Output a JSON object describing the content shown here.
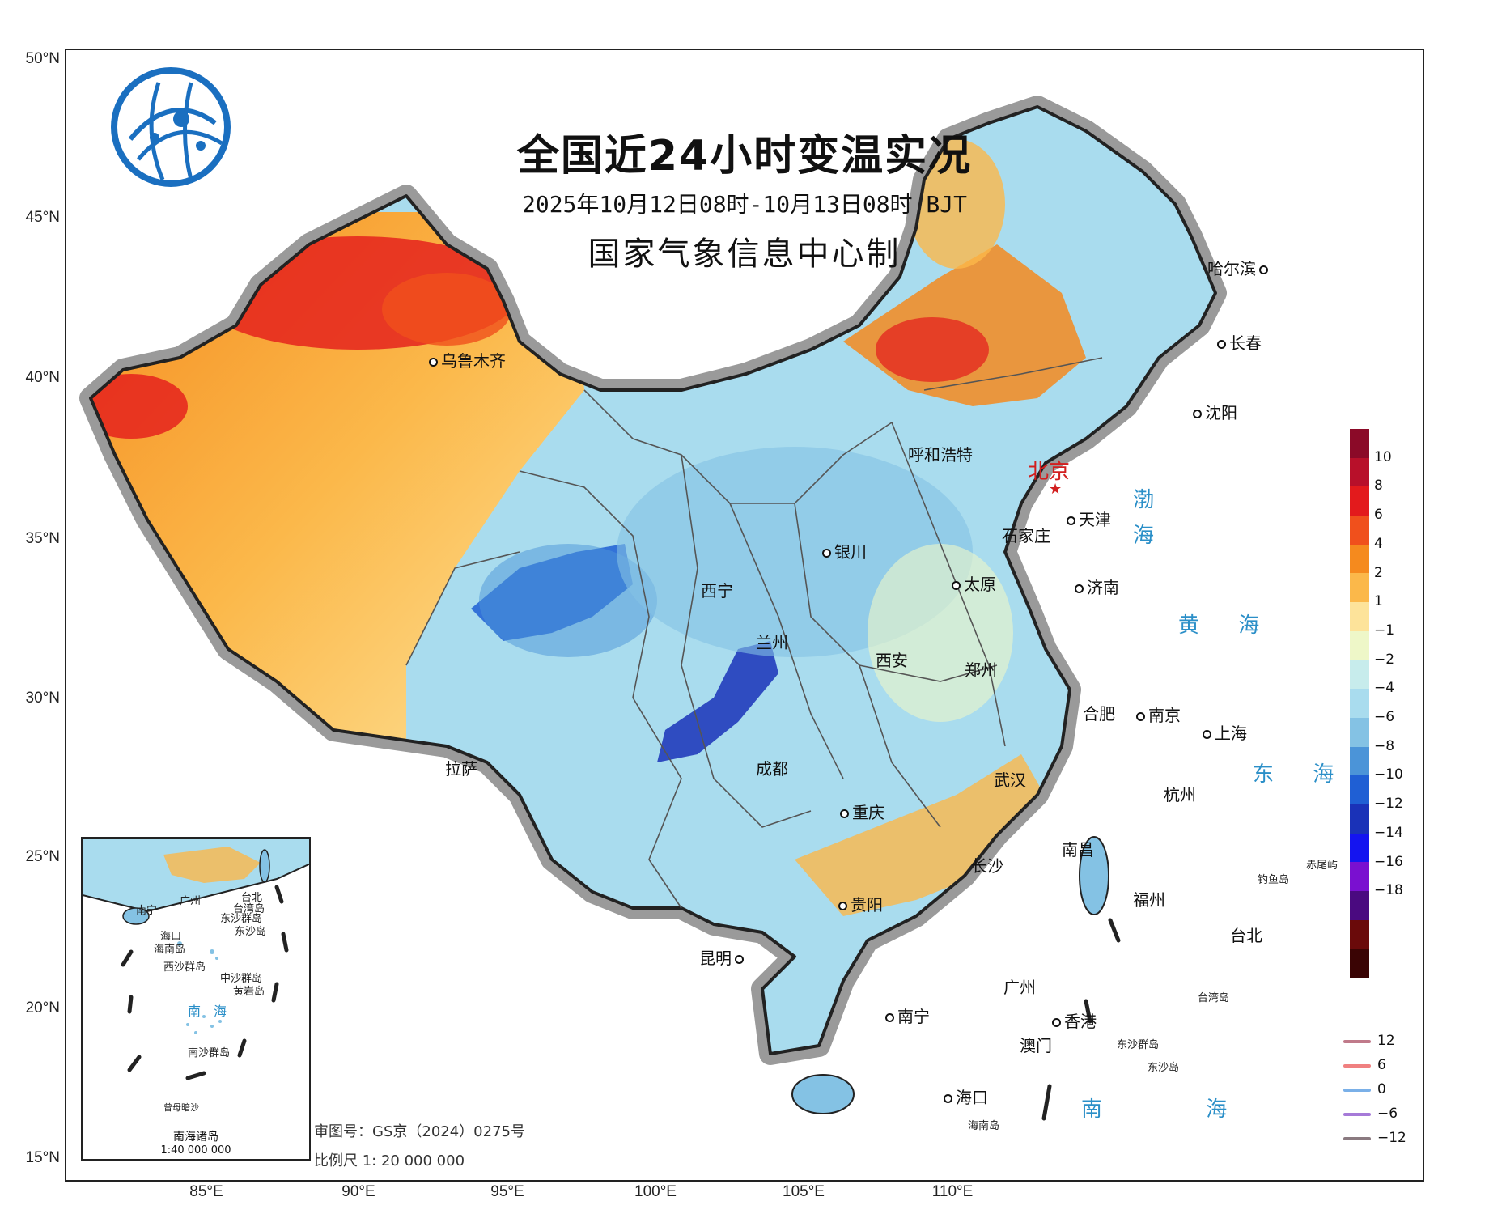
{
  "title": "全国近24小时变温实况",
  "subtitle": "2025年10月12日08时-10月13日08时 BJT",
  "producer": "国家气象信息中心制",
  "latitude_labels": [
    "50°N",
    "45°N",
    "40°N",
    "35°N",
    "30°N",
    "25°N",
    "20°N",
    "15°N"
  ],
  "longitude_labels": [
    "85°E",
    "90°E",
    "95°E",
    "100°E",
    "105°E",
    "110°E"
  ],
  "capital": "北京",
  "cities": [
    {
      "name": "乌鲁木齐",
      "key": "urumqi"
    },
    {
      "name": "哈尔滨",
      "key": "harbin"
    },
    {
      "name": "长春",
      "key": "changchun"
    },
    {
      "name": "沈阳",
      "key": "shenyang"
    },
    {
      "name": "呼和浩特",
      "key": "hohhot"
    },
    {
      "name": "天津",
      "key": "tianjin"
    },
    {
      "name": "石家庄",
      "key": "shijiazhuang"
    },
    {
      "name": "银川",
      "key": "yinchuan"
    },
    {
      "name": "太原",
      "key": "taiyuan"
    },
    {
      "name": "济南",
      "key": "jinan"
    },
    {
      "name": "西宁",
      "key": "xining"
    },
    {
      "name": "兰州",
      "key": "lanzhou"
    },
    {
      "name": "西安",
      "key": "xian"
    },
    {
      "name": "郑州",
      "key": "zhengzhou"
    },
    {
      "name": "合肥",
      "key": "hefei"
    },
    {
      "name": "南京",
      "key": "nanjing"
    },
    {
      "name": "上海",
      "key": "shanghai"
    },
    {
      "name": "拉萨",
      "key": "lhasa"
    },
    {
      "name": "成都",
      "key": "chengdu"
    },
    {
      "name": "武汉",
      "key": "wuhan"
    },
    {
      "name": "杭州",
      "key": "hangzhou"
    },
    {
      "name": "重庆",
      "key": "chongqing"
    },
    {
      "name": "长沙",
      "key": "changsha"
    },
    {
      "name": "南昌",
      "key": "nanchang"
    },
    {
      "name": "福州",
      "key": "fuzhou"
    },
    {
      "name": "贵阳",
      "key": "guiyang"
    },
    {
      "name": "台北",
      "key": "taipei"
    },
    {
      "name": "昆明",
      "key": "kunming"
    },
    {
      "name": "广州",
      "key": "guangzhou"
    },
    {
      "name": "南宁",
      "key": "nanning"
    },
    {
      "name": "香港",
      "key": "hongkong"
    },
    {
      "name": "澳门",
      "key": "macau"
    },
    {
      "name": "海口",
      "key": "haikou"
    }
  ],
  "seas": {
    "bohai": "渤 海",
    "huanghai": "黄 海",
    "donghai": "东 海",
    "nanhai": "南 海"
  },
  "islands": {
    "hainan": "海南岛",
    "dongsha": "东沙群岛",
    "dongsha_dao": "东沙岛",
    "diaoyu": "钓鱼岛",
    "chiwei": "赤尾屿",
    "taiwan": "台湾岛"
  },
  "legend": {
    "ticks": [
      "10",
      "8",
      "6",
      "4",
      "2",
      "1",
      "−1",
      "−2",
      "−4",
      "−6",
      "−8",
      "−10",
      "−12",
      "−14",
      "−16",
      "−18"
    ],
    "colors": [
      "#8b0a28",
      "#b8102a",
      "#e31a1c",
      "#f0501c",
      "#f58a1e",
      "#fbb84a",
      "#fde39a",
      "#eef7c8",
      "#c7ecec",
      "#a9dcee",
      "#84c2e4",
      "#4b94d8",
      "#1f5fd4",
      "#1a32b8",
      "#1414f0",
      "#7a10d0",
      "#4a0a80",
      "#6a0a0a",
      "#3a0404"
    ]
  },
  "isolines": [
    {
      "label": "12",
      "color": "#c07a8a"
    },
    {
      "label": "6",
      "color": "#f08080"
    },
    {
      "label": "0",
      "color": "#7ab0e8"
    },
    {
      "label": "−6",
      "color": "#a67ad8"
    },
    {
      "label": "−12",
      "color": "#8a7a80"
    }
  ],
  "inset": {
    "caption": "南海诸岛",
    "scale": "1:40 000 000",
    "labels": {
      "nanning": "南宁",
      "guangzhou": "广州",
      "taipei": "台北",
      "haikou": "海口",
      "hainan": "海南岛",
      "dongsha": "东沙群岛",
      "dongshadao": "东沙岛",
      "xisha": "西沙群岛",
      "zhongsha": "中沙群岛",
      "huangyan": "黄岩岛",
      "nanhai": "南　海",
      "nansha": "南沙群岛",
      "zengmu": "曾母暗沙",
      "taiwan": "台湾岛"
    }
  },
  "approval": "审图号：GS京（2024）0275号",
  "scale": "比例尺 1: 20 000 000"
}
